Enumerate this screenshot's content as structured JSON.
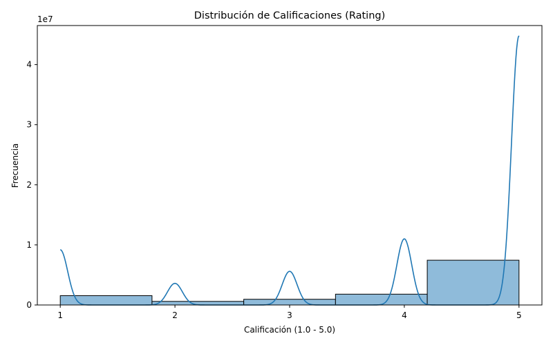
{
  "chart_data": {
    "type": "bar",
    "title": "Distribución de Calificaciones (Rating)",
    "xlabel": "Calificación (1.0 - 5.0)",
    "ylabel": "Frecuencia",
    "y_offset_label": "1e7",
    "xlim": [
      0.8,
      5.2
    ],
    "ylim": [
      0,
      46500000
    ],
    "x_ticks": [
      1,
      2,
      3,
      4,
      5
    ],
    "y_ticks": [
      0,
      10000000,
      20000000,
      30000000,
      40000000
    ],
    "y_tick_labels": [
      "0",
      "1",
      "2",
      "3",
      "4"
    ],
    "x_tick_labels": [
      "1",
      "2",
      "3",
      "4",
      "5"
    ],
    "bins": [
      {
        "start": 1.0,
        "end": 1.8,
        "value": 1550000
      },
      {
        "start": 1.8,
        "end": 2.6,
        "value": 600000
      },
      {
        "start": 2.6,
        "end": 3.4,
        "value": 950000
      },
      {
        "start": 3.4,
        "end": 4.2,
        "value": 1800000
      },
      {
        "start": 4.2,
        "end": 5.0,
        "value": 7450000
      }
    ],
    "kde": {
      "peaks": [
        {
          "x": 1.0,
          "value": 9200000
        },
        {
          "x": 2.0,
          "value": 3600000
        },
        {
          "x": 3.0,
          "value": 5600000
        },
        {
          "x": 4.0,
          "value": 11000000
        },
        {
          "x": 5.0,
          "value": 44800000
        }
      ],
      "range": [
        1.0,
        5.0
      ]
    },
    "bar_color": "#8fbbda",
    "bar_edge_color": "#000000",
    "kde_color": "#1f77b4",
    "grid": false,
    "legend": "none"
  }
}
